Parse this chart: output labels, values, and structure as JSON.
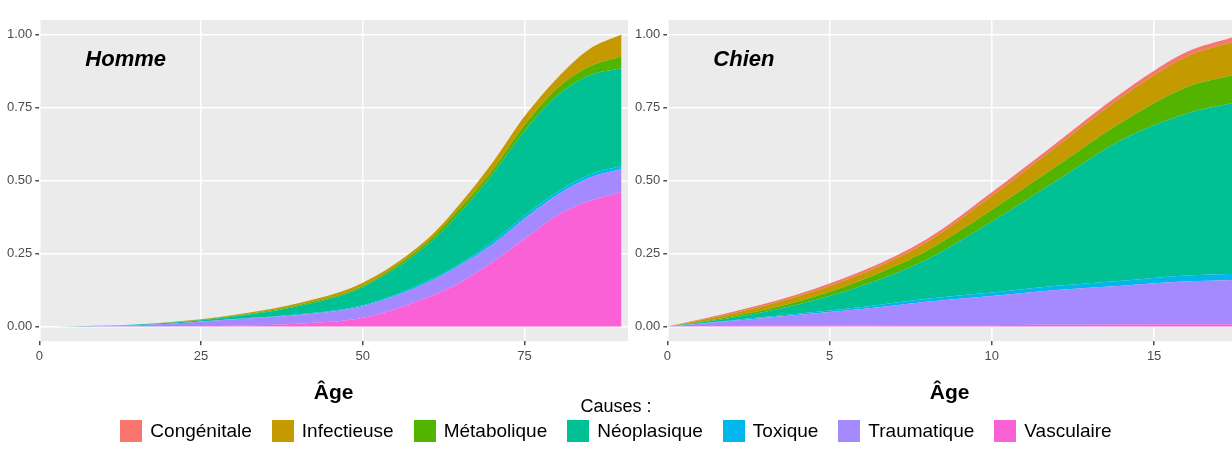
{
  "chart_data": [
    {
      "type": "area",
      "title": "Homme",
      "xlabel": "Âge",
      "stacked": true,
      "grid": true,
      "x": [
        0,
        10,
        20,
        30,
        40,
        50,
        60,
        65,
        70,
        75,
        80,
        85,
        90
      ],
      "xlim": [
        0,
        91
      ],
      "xticks": [
        0,
        25,
        50,
        75
      ],
      "ylim": [
        -0.05,
        1.05
      ],
      "yticks": [
        {
          "value": 0,
          "label": "0.00"
        },
        {
          "value": 0.25,
          "label": "0.25"
        },
        {
          "value": 0.5,
          "label": "0.50"
        },
        {
          "value": 0.75,
          "label": "0.75"
        },
        {
          "value": 1,
          "label": "1.00"
        }
      ],
      "series": [
        {
          "color": "#fb61d7",
          "values": [
            0,
            0,
            0,
            0.003,
            0.01,
            0.03,
            0.1,
            0.15,
            0.22,
            0.3,
            0.38,
            0.43,
            0.46
          ]
        },
        {
          "color": "#a58aff",
          "values": [
            0,
            0.002,
            0.01,
            0.022,
            0.03,
            0.04,
            0.05,
            0.06,
            0.06,
            0.07,
            0.07,
            0.08,
            0.08
          ]
        },
        {
          "color": "#00b6eb",
          "values": [
            0,
            0,
            0,
            0.001,
            0.002,
            0.003,
            0.005,
            0.005,
            0.01,
            0.01,
            0.01,
            0.01,
            0.01
          ]
        },
        {
          "color": "#00c094",
          "values": [
            0,
            0.001,
            0.003,
            0.009,
            0.028,
            0.062,
            0.125,
            0.175,
            0.23,
            0.29,
            0.33,
            0.34,
            0.335
          ]
        },
        {
          "color": "#53b400",
          "values": [
            0,
            0,
            0.001,
            0.002,
            0.004,
            0.005,
            0.01,
            0.015,
            0.015,
            0.02,
            0.025,
            0.03,
            0.04
          ]
        },
        {
          "color": "#c49a00",
          "values": [
            0,
            0,
            0.001,
            0.003,
            0.006,
            0.01,
            0.01,
            0.015,
            0.025,
            0.03,
            0.035,
            0.06,
            0.075
          ]
        }
      ]
    },
    {
      "type": "area",
      "title": "Chien",
      "xlabel": "Âge",
      "stacked": true,
      "legend": "bottom",
      "legend_title": "Causes :",
      "grid": true,
      "x": [
        0,
        2,
        4,
        6,
        8,
        10,
        12,
        14,
        16,
        17.4
      ],
      "xlim": [
        0,
        17.4
      ],
      "xticks": [
        0,
        5,
        10,
        15
      ],
      "ylim": [
        -0.05,
        1.05
      ],
      "yticks": [
        {
          "value": 0,
          "label": "0.00"
        },
        {
          "value": 0.25,
          "label": "0.25"
        },
        {
          "value": 0.5,
          "label": "0.50"
        },
        {
          "value": 0.75,
          "label": "0.75"
        },
        {
          "value": 1,
          "label": "1.00"
        }
      ],
      "series": [
        {
          "name": "Vasculaire",
          "color": "#fb61d7",
          "values": [
            0,
            0.002,
            0.003,
            0.004,
            0.005,
            0.005,
            0.006,
            0.007,
            0.008,
            0.008
          ]
        },
        {
          "name": "Traumatique",
          "color": "#a58aff",
          "values": [
            0,
            0.018,
            0.037,
            0.056,
            0.08,
            0.1,
            0.119,
            0.133,
            0.147,
            0.152
          ]
        },
        {
          "name": "Toxique",
          "color": "#00b6eb",
          "values": [
            0,
            0.002,
            0.004,
            0.007,
            0.01,
            0.012,
            0.015,
            0.017,
            0.02,
            0.02
          ]
        },
        {
          "name": "Néoplasique",
          "color": "#00c094",
          "values": [
            0,
            0.008,
            0.031,
            0.073,
            0.135,
            0.243,
            0.36,
            0.483,
            0.555,
            0.585
          ]
        },
        {
          "name": "Métabolique",
          "color": "#53b400",
          "values": [
            0,
            0.005,
            0.01,
            0.02,
            0.03,
            0.04,
            0.05,
            0.06,
            0.09,
            0.095
          ]
        },
        {
          "name": "Infectieuse",
          "color": "#c49a00",
          "values": [
            0,
            0.01,
            0.018,
            0.022,
            0.03,
            0.048,
            0.067,
            0.086,
            0.105,
            0.115
          ]
        },
        {
          "name": "Congénitale",
          "color": "#f8766d",
          "values": [
            0,
            0.005,
            0.007,
            0.008,
            0.01,
            0.012,
            0.013,
            0.014,
            0.015,
            0.015
          ]
        }
      ]
    }
  ]
}
